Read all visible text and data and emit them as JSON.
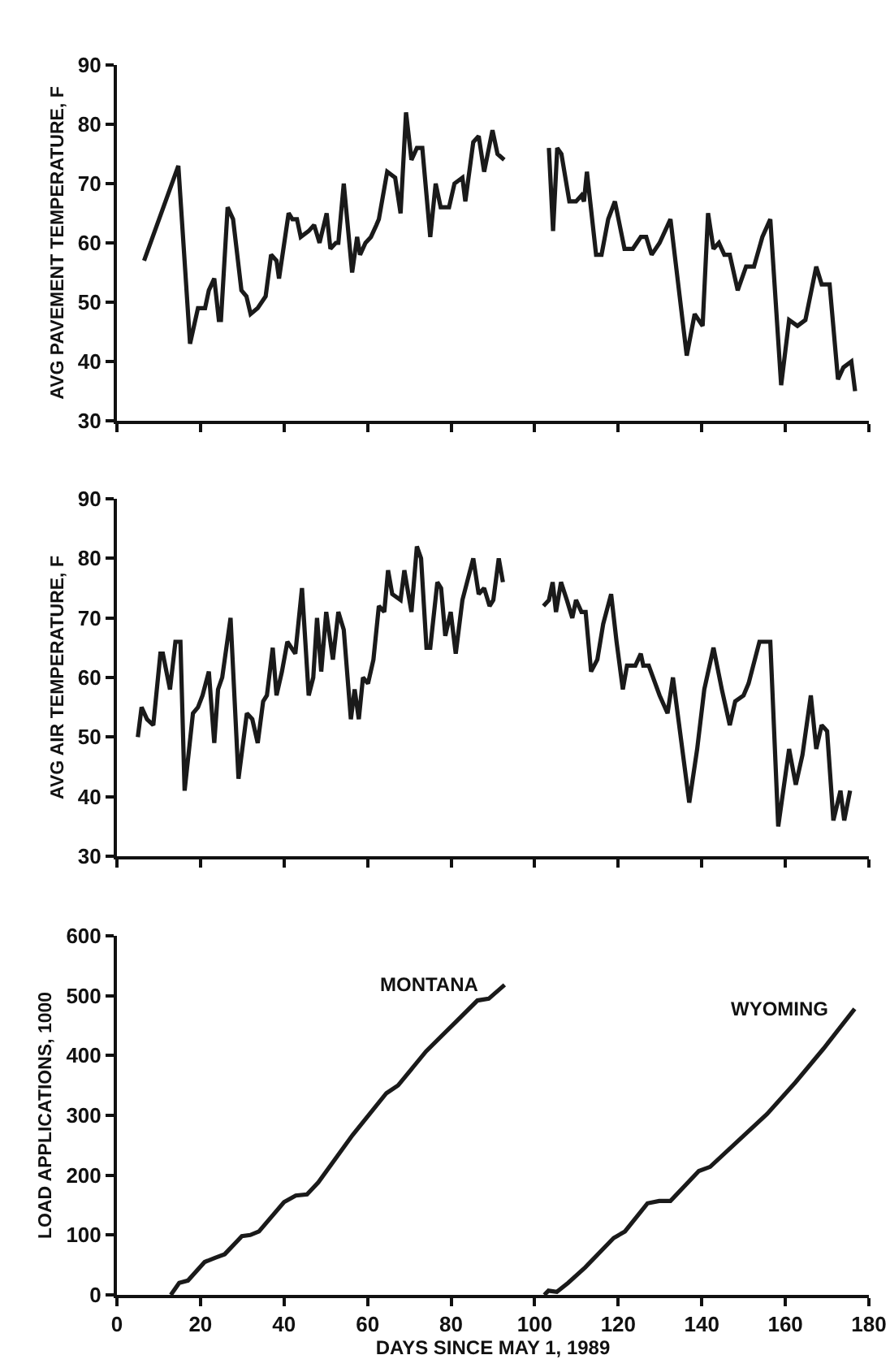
{
  "chart_data": [
    {
      "type": "line",
      "ylabel": "AVG PAVEMENT TEMPERATURE, F",
      "xlim": [
        0,
        180
      ],
      "ylim": [
        30,
        90
      ],
      "xticks": [
        0,
        20,
        40,
        60,
        80,
        100,
        120,
        140,
        160,
        180
      ],
      "yticks": [
        30,
        40,
        50,
        60,
        70,
        80,
        90
      ],
      "tick_labels": "y",
      "legend": false,
      "color": "#1a1a1a",
      "x": [
        6.5,
        14.7,
        17.5,
        19.4,
        21.1,
        22,
        23.3,
        24.4,
        24.9,
        26.5,
        27.8,
        29.8,
        31,
        32,
        33.7,
        35.6,
        36.9,
        38.2,
        38.8,
        41.1,
        42,
        43.1,
        44,
        45.9,
        47.2,
        48.5,
        50.2,
        51.1,
        52.4,
        53,
        54.3,
        56.3,
        57.5,
        58.2,
        59.5,
        60.8,
        62.1,
        62.7,
        64.7,
        66.6,
        67.9,
        69.2,
        70.5,
        71.8,
        73.1,
        75,
        76.3,
        77.5,
        79.5,
        80.8,
        82.7,
        83.4,
        85.3,
        86.6,
        87.9,
        89.9,
        91.1,
        92.7,
        98,
        103.4,
        104.4,
        105.4,
        106.4,
        108.3,
        109.9,
        111.2,
        111.8,
        112.5,
        114.7,
        116,
        117.6,
        119.2,
        121.5,
        123.5,
        125.4,
        126.7,
        128,
        129.9,
        132.5,
        136.4,
        138.3,
        140.2,
        141.5,
        142.8,
        144.1,
        145.4,
        146.7,
        148.6,
        150.6,
        152.5,
        154.5,
        156.4,
        159,
        160.9,
        162.9,
        164.8,
        167.4,
        168.7,
        170.6,
        172.6,
        173.9,
        175.8,
        176.7
      ],
      "values": [
        57,
        73,
        43,
        49,
        49,
        52,
        54,
        47,
        47,
        66,
        64,
        52,
        51,
        48,
        49,
        51,
        58,
        57,
        54,
        65,
        64,
        64,
        61,
        62,
        63,
        60,
        65,
        59,
        60,
        60,
        70,
        55,
        61,
        58,
        60,
        61,
        63,
        64,
        72,
        71,
        65,
        82,
        74,
        76,
        76,
        61,
        70,
        66,
        66,
        70,
        71,
        67,
        77,
        78,
        72,
        79,
        75,
        74,
        null,
        76,
        62,
        76,
        75,
        67,
        67,
        68,
        67,
        72,
        58,
        58,
        64,
        67,
        59,
        59,
        61,
        61,
        58,
        60,
        64,
        41,
        48,
        46,
        65,
        59,
        60,
        58,
        58,
        52,
        56,
        56,
        61,
        64,
        36,
        47,
        46,
        47,
        56,
        53,
        53,
        37,
        39,
        40,
        35
      ]
    },
    {
      "type": "line",
      "ylabel": "AVG AIR TEMPERATURE, F",
      "xlim": [
        0,
        180
      ],
      "ylim": [
        30,
        90
      ],
      "xticks": [
        0,
        20,
        40,
        60,
        80,
        100,
        120,
        140,
        160,
        180
      ],
      "yticks": [
        30,
        40,
        50,
        60,
        70,
        80,
        90
      ],
      "tick_labels": "y",
      "legend": false,
      "color": "#1a1a1a",
      "x": [
        5,
        5.9,
        7.2,
        8.7,
        10.4,
        11,
        12.7,
        14,
        15.2,
        16.2,
        18.2,
        19.4,
        20.5,
        22,
        23.3,
        24.2,
        25.2,
        27.2,
        29.1,
        31.1,
        32.4,
        33.7,
        35,
        35.9,
        37.3,
        38.2,
        39.5,
        40.8,
        42.7,
        44.3,
        45.9,
        47,
        47.9,
        48.9,
        50.1,
        51.7,
        53,
        54.3,
        56,
        56.9,
        57.9,
        58.9,
        60.1,
        61.4,
        62.7,
        64,
        64.9,
        65.9,
        67.9,
        68.8,
        70.5,
        71.8,
        72.8,
        74.1,
        75,
        76.7,
        77.6,
        78.6,
        79.9,
        81.1,
        82.7,
        85.3,
        86.6,
        87.9,
        89.2,
        90.1,
        91.4,
        92.4,
        97,
        102.1,
        103.4,
        104.3,
        105.1,
        106.3,
        107.7,
        109,
        109.9,
        111.2,
        112.2,
        113.5,
        115,
        116.4,
        118.3,
        119.6,
        121.1,
        122.1,
        124.1,
        125.4,
        126,
        127.3,
        129.9,
        131.8,
        133.1,
        134.4,
        137,
        138.9,
        140.6,
        142.8,
        144.8,
        146.7,
        148,
        150,
        151.2,
        153.8,
        156.4,
        158.3,
        160.9,
        162.5,
        164.1,
        166.1,
        167.4,
        168.7,
        170,
        171.5,
        173.2,
        174.1,
        175.5
      ],
      "values": [
        50,
        55,
        53,
        52,
        64,
        64,
        58,
        66,
        66,
        41,
        54,
        55,
        57,
        61,
        49,
        58,
        60,
        70,
        43,
        54,
        53,
        49,
        56,
        57,
        65,
        57,
        61,
        66,
        64,
        75,
        57,
        60,
        70,
        61,
        71,
        63,
        71,
        68,
        53,
        58,
        53,
        60,
        59,
        63,
        72,
        71,
        78,
        74,
        73,
        78,
        71,
        82,
        80,
        65,
        65,
        76,
        75,
        67,
        71,
        64,
        73,
        80,
        74,
        75,
        72,
        73,
        80,
        76,
        null,
        72,
        73,
        76,
        71,
        76,
        73,
        70,
        73,
        71,
        71,
        61,
        63,
        69,
        74,
        66,
        58,
        62,
        62,
        64,
        62,
        62,
        57,
        54,
        60,
        53,
        39,
        48,
        58,
        65,
        58,
        52,
        56,
        57,
        59,
        66,
        66,
        35,
        48,
        42,
        47,
        57,
        48,
        52,
        51,
        36,
        41,
        36,
        41
      ]
    },
    {
      "type": "line",
      "ylabel": "LOAD APPLICATIONS, 1000",
      "xlabel": "DAYS SINCE MAY 1, 1989",
      "xlim": [
        0,
        180
      ],
      "ylim": [
        0,
        600
      ],
      "xticks": [
        0,
        20,
        40,
        60,
        80,
        100,
        120,
        140,
        160,
        180
      ],
      "yticks": [
        0,
        100,
        200,
        300,
        400,
        500,
        600
      ],
      "legend": false,
      "series": [
        {
          "name": "MONTANA",
          "color": "#1a1a1a",
          "x": [
            12.9,
            14.9,
            17,
            21,
            23.5,
            25.8,
            29.9,
            31.9,
            34,
            40,
            42.8,
            45.5,
            48.2,
            56.4,
            64.5,
            67.3,
            74,
            80.8,
            86.3,
            89,
            92.8
          ],
          "values": [
            0,
            20,
            24,
            55,
            62,
            68,
            98,
            100,
            106,
            155,
            166,
            168,
            188,
            267,
            337,
            350,
            407,
            454,
            492,
            495,
            518
          ]
        },
        {
          "name": "WYOMING",
          "color": "#1a1a1a",
          "x": [
            102.3,
            103.3,
            105.3,
            108,
            112.1,
            118.9,
            121.6,
            127,
            129.8,
            132.5,
            139.3,
            142,
            148.8,
            155.6,
            162.4,
            169.2,
            176.6
          ],
          "values": [
            0,
            7,
            5,
            20,
            46,
            95,
            106,
            153,
            157,
            157,
            207,
            214,
            258,
            302,
            355,
            412,
            478
          ]
        }
      ]
    }
  ]
}
